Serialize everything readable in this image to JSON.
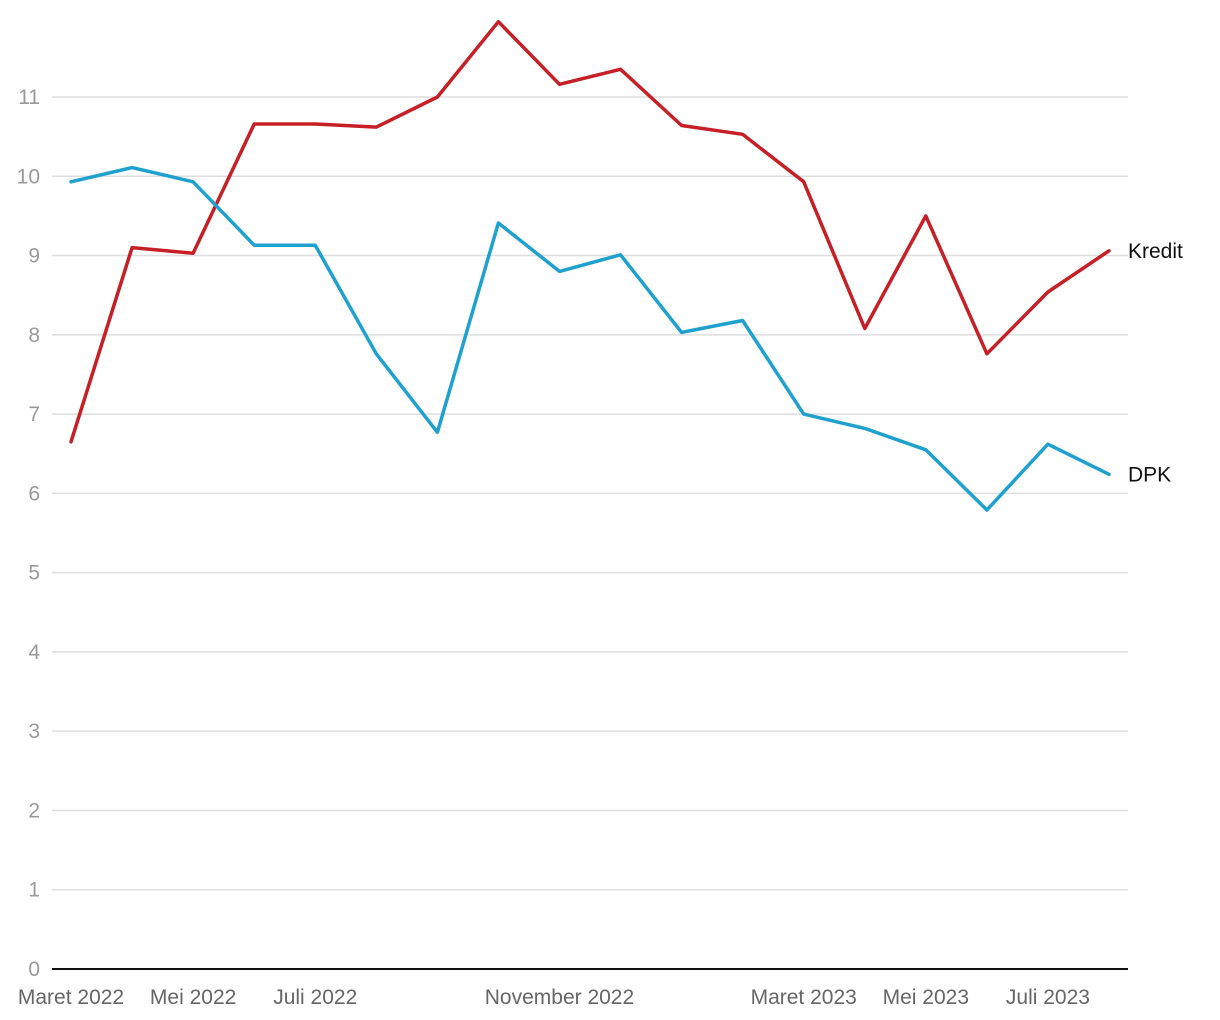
{
  "chart_data": {
    "type": "line",
    "title": "",
    "xlabel": "",
    "ylabel": "",
    "x": [
      "Maret 2022",
      "April 2022",
      "Mei 2022",
      "Juni 2022",
      "Juli 2022",
      "Agustus 2022",
      "September 2022",
      "Oktober 2022",
      "November 2022",
      "Desember 2022",
      "Januari 2023",
      "Februari 2023",
      "Maret 2023",
      "April 2023",
      "Mei 2023",
      "Juni 2023",
      "Juli 2023",
      "Agustus 2023"
    ],
    "x_tick_labels": [
      {
        "index": 0,
        "label": "Maret 2022"
      },
      {
        "index": 2,
        "label": "Mei 2022"
      },
      {
        "index": 4,
        "label": "Juli 2022"
      },
      {
        "index": 8,
        "label": "November 2022"
      },
      {
        "index": 12,
        "label": "Maret 2023"
      },
      {
        "index": 14,
        "label": "Mei 2023"
      },
      {
        "index": 16,
        "label": "Juli 2023"
      }
    ],
    "y_ticks": [
      0,
      1,
      2,
      3,
      4,
      5,
      6,
      7,
      8,
      9,
      10,
      11
    ],
    "ylim": [
      0,
      12
    ],
    "grid": true,
    "legend": "direct-labels-right",
    "series": [
      {
        "name": "Kredit",
        "color": "#c62026",
        "values": [
          6.65,
          9.1,
          9.03,
          10.66,
          10.66,
          10.62,
          11.0,
          11.95,
          11.16,
          11.35,
          10.64,
          10.53,
          9.93,
          8.08,
          9.5,
          7.76,
          8.54,
          9.06
        ]
      },
      {
        "name": "DPK",
        "color": "#1fa1cf",
        "values": [
          9.93,
          10.11,
          9.93,
          9.13,
          9.13,
          7.76,
          6.77,
          9.41,
          8.8,
          9.01,
          8.03,
          8.18,
          7.0,
          6.82,
          6.55,
          5.79,
          6.62,
          6.24
        ]
      }
    ]
  }
}
